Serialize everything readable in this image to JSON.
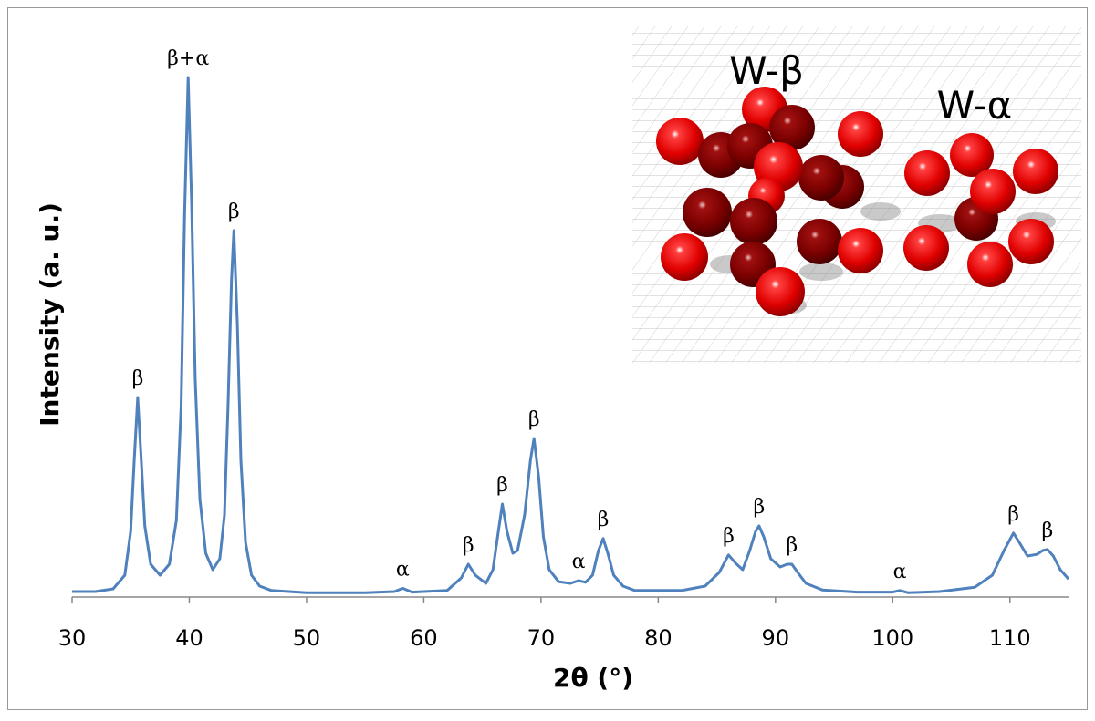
{
  "chart_data": {
    "type": "line",
    "xlabel": "2θ (°)",
    "ylabel": "Intensity (a. u.)",
    "color": "#4f81bd",
    "xlim": [
      30,
      115
    ],
    "xticks": [
      30,
      40,
      50,
      60,
      70,
      80,
      90,
      100,
      110
    ],
    "ylim": [
      0,
      100
    ],
    "x": [
      30,
      32,
      33.5,
      34.5,
      35,
      35.3,
      35.6,
      35.9,
      36.2,
      36.7,
      37.5,
      38.3,
      38.9,
      39.3,
      39.6,
      39.9,
      40.2,
      40.5,
      40.9,
      41.4,
      42,
      42.6,
      43,
      43.3,
      43.6,
      43.8,
      44.1,
      44.4,
      44.8,
      45.3,
      46,
      47,
      50,
      55,
      57.5,
      58.2,
      59,
      62,
      63.2,
      63.8,
      64.4,
      65.3,
      65.9,
      66.3,
      66.7,
      67.1,
      67.6,
      68,
      68.6,
      69.1,
      69.4,
      69.8,
      70.2,
      70.7,
      71.5,
      72.5,
      73.2,
      73.8,
      74.4,
      74.9,
      75.3,
      75.7,
      76.2,
      77,
      78,
      82,
      84,
      85.2,
      86,
      86.6,
      87.2,
      87.8,
      88.3,
      88.6,
      89,
      89.6,
      90.4,
      91,
      91.4,
      91.9,
      92.6,
      94,
      97,
      100,
      100.6,
      101.3,
      104,
      107,
      108.5,
      109.5,
      110.3,
      110.8,
      111.5,
      112.3,
      112.8,
      113.2,
      113.7,
      114.3,
      115
    ],
    "values": [
      1,
      1,
      1.5,
      4,
      12,
      25,
      36.5,
      25,
      13,
      6,
      4,
      6,
      14,
      35,
      70,
      95,
      72,
      40,
      18,
      8,
      5,
      7,
      15,
      35,
      58,
      67,
      50,
      25,
      10,
      4,
      2,
      1.2,
      0.8,
      0.8,
      1,
      1.6,
      0.9,
      1.2,
      3.5,
      6,
      4,
      2.5,
      5,
      11,
      17,
      12,
      8,
      8.5,
      15,
      25,
      29,
      22,
      11,
      5,
      2.8,
      2.5,
      3,
      2.7,
      4,
      8.5,
      10.7,
      8,
      4,
      2,
      1.2,
      1.2,
      2,
      4.5,
      7.7,
      6.2,
      5,
      8.5,
      12,
      13,
      11,
      7,
      5.5,
      6,
      6,
      4.5,
      2.5,
      1.3,
      0.9,
      0.9,
      1.2,
      0.8,
      1,
      1.8,
      4,
      8.5,
      11.7,
      10,
      7.5,
      7.8,
      8.5,
      8.7,
      7.5,
      5,
      3.3
    ],
    "annotations": [
      {
        "text": "β",
        "x": 35.6
      },
      {
        "text": "β+α",
        "x": 39.9
      },
      {
        "text": "β",
        "x": 43.8
      },
      {
        "text": "α",
        "x": 58.2
      },
      {
        "text": "β",
        "x": 63.8
      },
      {
        "text": "β",
        "x": 66.7
      },
      {
        "text": "β",
        "x": 69.4
      },
      {
        "text": "α",
        "x": 73.2
      },
      {
        "text": "β",
        "x": 75.3
      },
      {
        "text": "β",
        "x": 86
      },
      {
        "text": "β",
        "x": 88.6
      },
      {
        "text": "β",
        "x": 91.4
      },
      {
        "text": "α",
        "x": 100.6
      },
      {
        "text": "β",
        "x": 110.3
      },
      {
        "text": "β",
        "x": 113.2
      }
    ]
  },
  "inset": {
    "labels": [
      "W-β",
      "W-α"
    ]
  }
}
